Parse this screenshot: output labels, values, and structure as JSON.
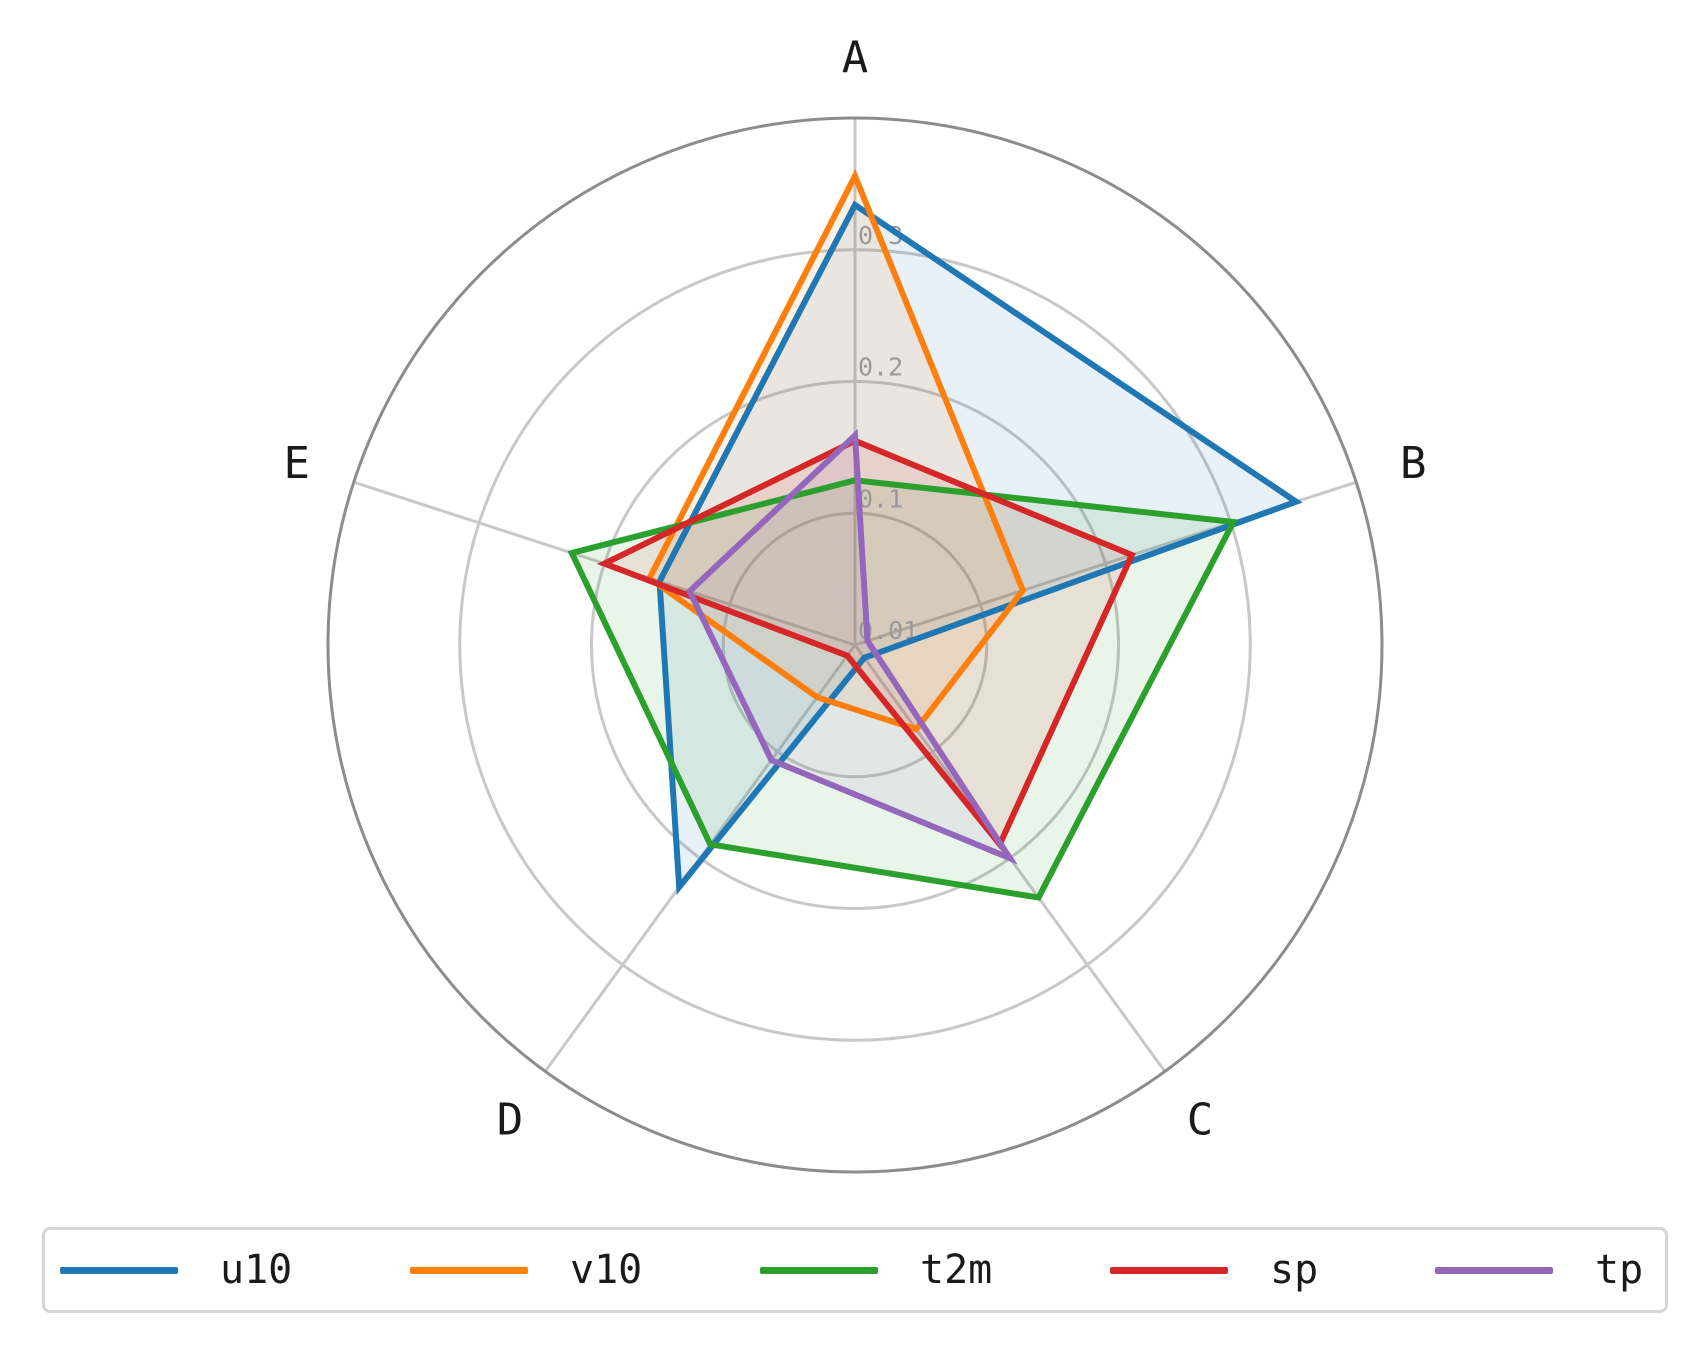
{
  "chart_data": {
    "type": "radar",
    "categories": [
      "A",
      "B",
      "C",
      "D",
      "E"
    ],
    "radial_ticks": [
      "0.01",
      "0.1",
      "0.2",
      "0.3"
    ],
    "series": [
      {
        "name": "u10",
        "color": "#1f77b4",
        "values": [
          0.334,
          0.352,
          0.012,
          0.227,
          0.156
        ]
      },
      {
        "name": "v10",
        "color": "#ff7f0e",
        "values": [
          0.356,
          0.134,
          0.079,
          0.049,
          0.164
        ]
      },
      {
        "name": "t2m",
        "color": "#2ca02c",
        "values": [
          0.125,
          0.302,
          0.237,
          0.187,
          0.226
        ]
      },
      {
        "name": "sp",
        "color": "#d62728",
        "values": [
          0.155,
          0.221,
          0.187,
          0.01,
          0.2
        ]
      },
      {
        "name": "tp",
        "color": "#9467bd",
        "values": [
          0.159,
          0.01,
          0.2,
          0.108,
          0.132
        ]
      }
    ],
    "grid": true,
    "legend_position": "bottom"
  }
}
